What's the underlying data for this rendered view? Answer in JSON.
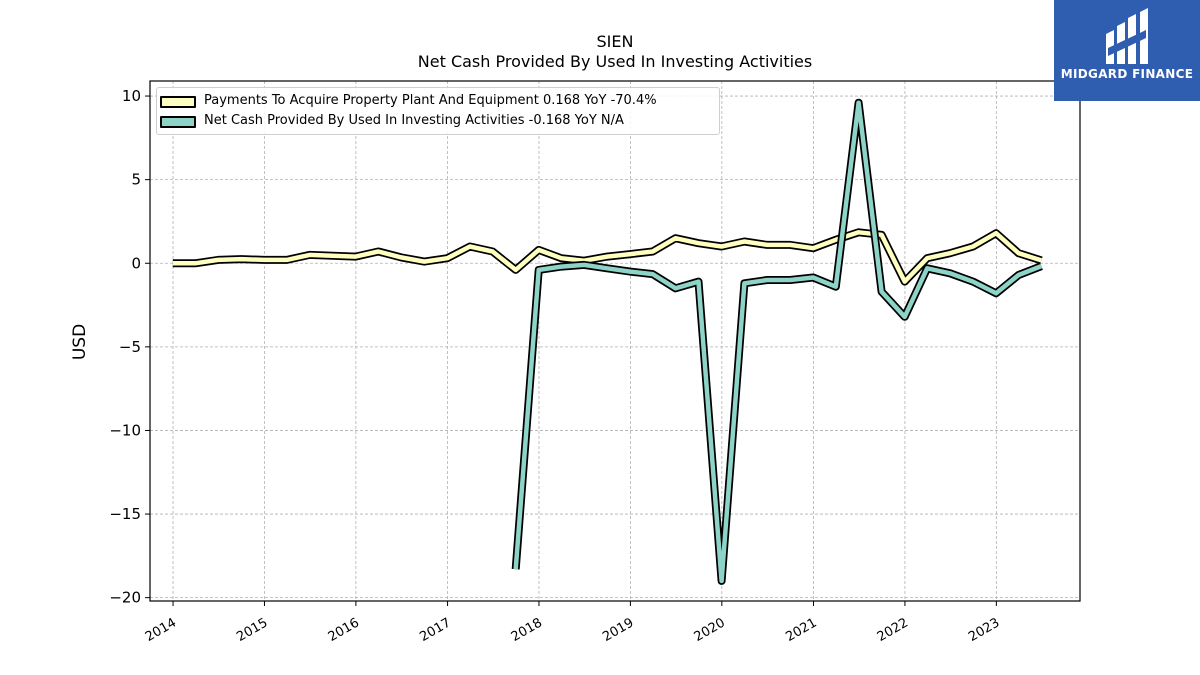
{
  "brand": {
    "name": "MIDGARD FINANCE",
    "color": "#2f5db0",
    "icon": "midgard-logo-icon"
  },
  "title": "SIEN",
  "subtitle": "Net Cash Provided By Used In Investing Activities",
  "legend": {
    "items": [
      "Payments To Acquire Property Plant And Equipment  0.168 YoY -70.4%",
      "Net Cash Provided By Used In Investing Activities  -0.168 YoY N/A"
    ]
  },
  "chart_data": {
    "type": "line",
    "title": "SIEN",
    "subtitle": "Net Cash Provided By Used In Investing Activities",
    "xlabel": "",
    "ylabel": "USD",
    "ylim": [
      -20.2,
      10.9
    ],
    "yticks": [
      10,
      5,
      0,
      -5,
      -10,
      -15,
      -20
    ],
    "ytick_labels": [
      "10",
      "5",
      "0",
      "−5",
      "−10",
      "−15",
      "−20"
    ],
    "xticks": [
      "2014",
      "2015",
      "2016",
      "2017",
      "2018",
      "2019",
      "2020",
      "2021",
      "2022",
      "2023"
    ],
    "xlim": [
      "2013-10-01",
      "2023-12-01"
    ],
    "grid": true,
    "legend_position": "top-left",
    "series": [
      {
        "name": "Payments To Acquire Property Plant And Equipment",
        "color": "#ffffbf",
        "points": [
          [
            "2013-12-31",
            0.0
          ],
          [
            "2014-03-31",
            0.0
          ],
          [
            "2014-06-30",
            0.2
          ],
          [
            "2014-09-30",
            0.25
          ],
          [
            "2014-12-31",
            0.2
          ],
          [
            "2015-03-31",
            0.2
          ],
          [
            "2015-06-30",
            0.5
          ],
          [
            "2015-09-30",
            0.45
          ],
          [
            "2015-12-31",
            0.4
          ],
          [
            "2016-03-31",
            0.7
          ],
          [
            "2016-06-30",
            0.35
          ],
          [
            "2016-09-30",
            0.1
          ],
          [
            "2016-12-31",
            0.3
          ],
          [
            "2017-03-31",
            1.0
          ],
          [
            "2017-06-30",
            0.7
          ],
          [
            "2017-09-30",
            -0.4
          ],
          [
            "2017-12-31",
            0.8
          ],
          [
            "2018-03-31",
            0.3
          ],
          [
            "2018-06-30",
            0.15
          ],
          [
            "2018-09-30",
            0.4
          ],
          [
            "2018-12-31",
            0.55
          ],
          [
            "2019-03-31",
            0.7
          ],
          [
            "2019-06-30",
            1.5
          ],
          [
            "2019-09-30",
            1.2
          ],
          [
            "2019-12-31",
            1.0
          ],
          [
            "2020-03-31",
            1.3
          ],
          [
            "2020-06-30",
            1.1
          ],
          [
            "2020-09-30",
            1.1
          ],
          [
            "2020-12-31",
            0.9
          ],
          [
            "2021-03-31",
            1.4
          ],
          [
            "2021-06-30",
            1.85
          ],
          [
            "2021-09-30",
            1.7
          ],
          [
            "2021-12-31",
            -1.1
          ],
          [
            "2022-03-31",
            0.3
          ],
          [
            "2022-06-30",
            0.6
          ],
          [
            "2022-09-30",
            1.0
          ],
          [
            "2022-12-31",
            1.8
          ],
          [
            "2023-03-31",
            0.6
          ],
          [
            "2023-06-30",
            0.168
          ]
        ]
      },
      {
        "name": "Net Cash Provided By Used In Investing Activities",
        "color": "#8dd3c7",
        "points": [
          [
            "2017-09-30",
            -18.3
          ],
          [
            "2017-12-31",
            -0.4
          ],
          [
            "2018-03-31",
            -0.2
          ],
          [
            "2018-06-30",
            -0.1
          ],
          [
            "2018-09-30",
            -0.3
          ],
          [
            "2018-12-31",
            -0.5
          ],
          [
            "2019-03-31",
            -0.65
          ],
          [
            "2019-06-30",
            -1.5
          ],
          [
            "2019-09-30",
            -1.1
          ],
          [
            "2019-12-31",
            -19.0
          ],
          [
            "2020-03-31",
            -1.2
          ],
          [
            "2020-06-30",
            -1.0
          ],
          [
            "2020-09-30",
            -1.0
          ],
          [
            "2020-12-31",
            -0.85
          ],
          [
            "2021-03-31",
            -1.4
          ],
          [
            "2021-06-30",
            9.6
          ],
          [
            "2021-09-30",
            -1.7
          ],
          [
            "2021-12-31",
            -3.2
          ],
          [
            "2022-03-31",
            -0.3
          ],
          [
            "2022-06-30",
            -0.6
          ],
          [
            "2022-09-30",
            -1.1
          ],
          [
            "2022-12-31",
            -1.8
          ],
          [
            "2023-03-31",
            -0.7
          ],
          [
            "2023-06-30",
            -0.168
          ]
        ]
      }
    ]
  }
}
